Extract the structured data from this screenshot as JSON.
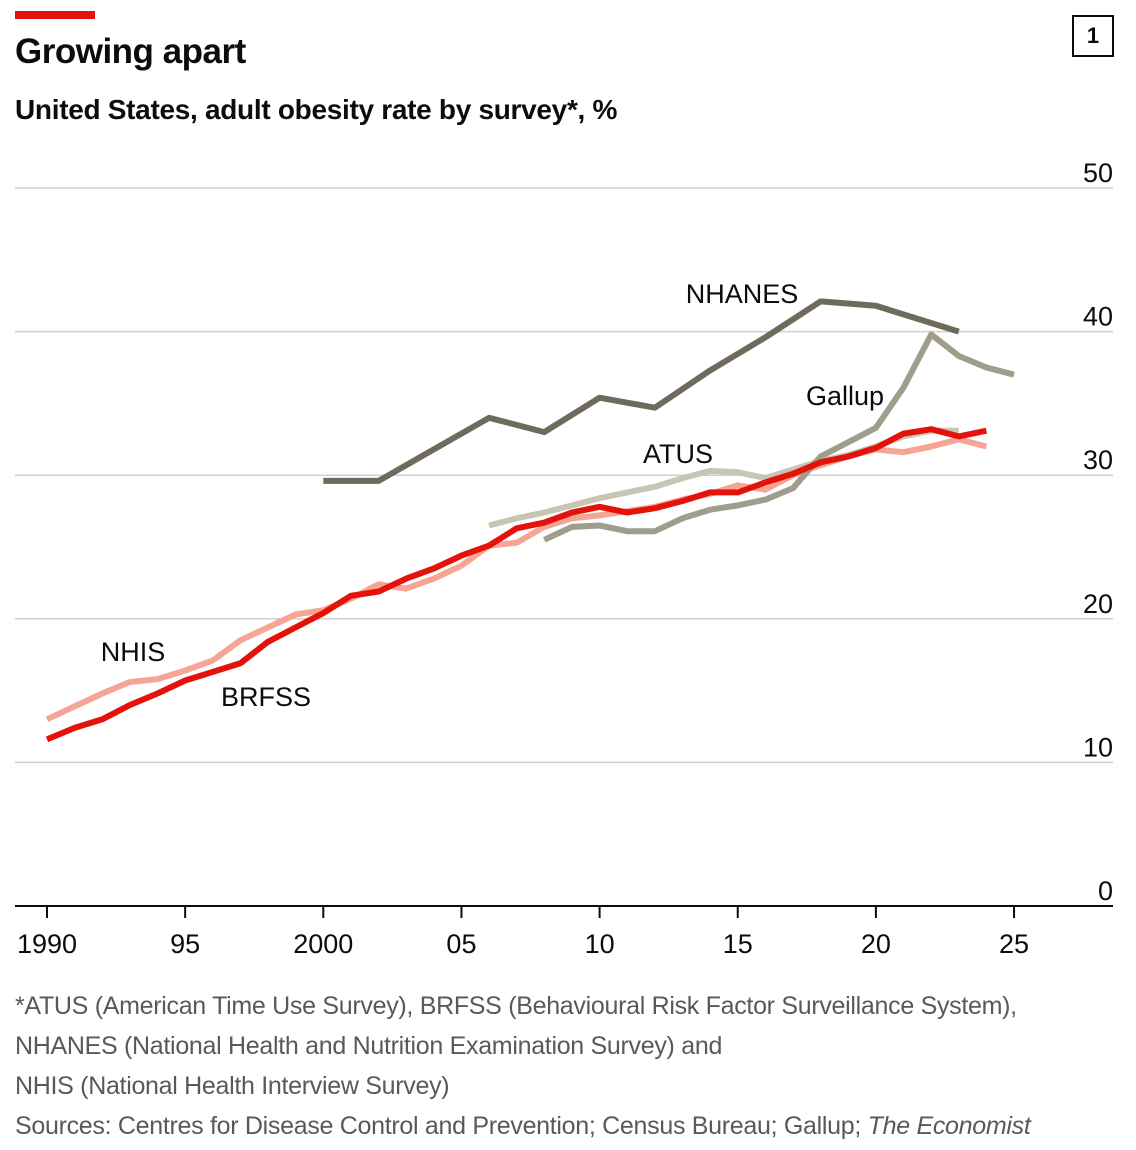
{
  "header": {
    "title": "Growing apart",
    "subtitle": "United States, adult obesity rate by survey*, %",
    "chart_number": "1"
  },
  "footnote": {
    "lines": [
      "*ATUS (American Time Use Survey), BRFSS (Behavioural Risk Factor Surveillance System),",
      "NHANES (National Health and Nutrition Examination Survey) and",
      "NHIS (National Health Interview Survey)"
    ],
    "sources_prefix": "Sources: Centres for Disease Control and Prevention; Census Bureau; Gallup; ",
    "sources_italic": "The Economist"
  },
  "chart_data": {
    "type": "line",
    "title": "Growing apart",
    "xlim": [
      1990,
      2027
    ],
    "ylim": [
      0,
      50
    ],
    "grid": true,
    "y_axis_side": "right",
    "y_ticks": [
      0,
      10,
      20,
      30,
      40,
      50
    ],
    "x_ticks": [
      1990,
      1995,
      2000,
      2005,
      2010,
      2015,
      2020,
      2025
    ],
    "x_tick_labels": [
      "1990",
      "95",
      "2000",
      "05",
      "10",
      "15",
      "20",
      "25"
    ],
    "series": [
      {
        "name": "NHIS",
        "color": "#f6a594",
        "x": [
          1990,
          1991,
          1992,
          1993,
          1994,
          1995,
          1996,
          1997,
          1998,
          1999,
          2000,
          2001,
          2002,
          2003,
          2004,
          2005,
          2006,
          2007,
          2008,
          2009,
          2010,
          2011,
          2012,
          2013,
          2014,
          2015,
          2016,
          2017,
          2018,
          2019,
          2020,
          2021,
          2022,
          2023,
          2024
        ],
        "y": [
          13.0,
          13.9,
          14.8,
          15.6,
          15.8,
          16.4,
          17.1,
          18.5,
          19.4,
          20.3,
          20.6,
          21.4,
          22.4,
          22.1,
          22.8,
          23.7,
          25.1,
          25.3,
          26.4,
          27.0,
          27.2,
          27.5,
          27.8,
          28.3,
          28.7,
          29.3,
          29.0,
          30.0,
          30.7,
          31.3,
          31.8,
          31.6,
          32.0,
          32.5,
          32.0
        ]
      },
      {
        "name": "ATUS",
        "color": "#c8c5b5",
        "x": [
          2006,
          2007,
          2008,
          2009,
          2010,
          2011,
          2012,
          2013,
          2014,
          2015,
          2016,
          2017,
          2018,
          2019,
          2020,
          2021,
          2022,
          2023
        ],
        "y": [
          26.5,
          27.0,
          27.4,
          27.9,
          28.4,
          28.8,
          29.2,
          29.8,
          30.3,
          30.2,
          29.8,
          30.4,
          31.0,
          31.4,
          32.0,
          32.7,
          33.1,
          33.1
        ]
      },
      {
        "name": "Gallup",
        "color": "#a09d8c",
        "x": [
          2008,
          2009,
          2010,
          2011,
          2012,
          2013,
          2014,
          2015,
          2016,
          2017,
          2018,
          2019,
          2020,
          2021,
          2022,
          2023,
          2024,
          2025
        ],
        "y": [
          25.5,
          26.4,
          26.5,
          26.1,
          26.1,
          27.0,
          27.6,
          27.9,
          28.3,
          29.1,
          31.3,
          32.3,
          33.3,
          36.1,
          39.8,
          38.3,
          37.5,
          37.0
        ]
      },
      {
        "name": "NHANES",
        "color": "#6f6b5c",
        "x": [
          2000,
          2002,
          2004,
          2006,
          2008,
          2010,
          2012,
          2014,
          2016,
          2018,
          2020,
          2023
        ],
        "y": [
          29.6,
          29.6,
          31.8,
          34.0,
          33.0,
          35.4,
          34.7,
          37.3,
          39.6,
          42.1,
          41.8,
          40.0
        ]
      },
      {
        "name": "BRFSS",
        "color": "#e3120b",
        "x": [
          1990,
          1991,
          1992,
          1993,
          1994,
          1995,
          1996,
          1997,
          1998,
          1999,
          2000,
          2001,
          2002,
          2003,
          2004,
          2005,
          2006,
          2007,
          2008,
          2009,
          2010,
          2011,
          2012,
          2013,
          2014,
          2015,
          2016,
          2017,
          2018,
          2019,
          2020,
          2021,
          2022,
          2023,
          2024
        ],
        "y": [
          11.6,
          12.4,
          13.0,
          14.0,
          14.8,
          15.7,
          16.3,
          16.9,
          18.4,
          19.4,
          20.4,
          21.6,
          21.9,
          22.8,
          23.5,
          24.4,
          25.1,
          26.3,
          26.7,
          27.4,
          27.8,
          27.4,
          27.7,
          28.2,
          28.8,
          28.8,
          29.5,
          30.1,
          30.9,
          31.3,
          31.9,
          32.9,
          33.2,
          32.7,
          33.1
        ]
      }
    ]
  }
}
